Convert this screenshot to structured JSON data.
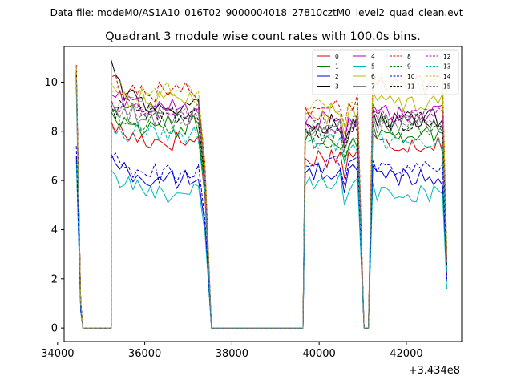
{
  "chart_data": {
    "type": "line",
    "suptitle": "Data file: modeM0/AS1A10_016T02_9000004018_27810cztM0_level2_quad_clean.evt",
    "title": "Quadrant 3 module wise count rates with 100.0s bins.",
    "xlabel": "",
    "ylabel": "",
    "offset_label": "+3.434e8",
    "xlim": [
      34150,
      43270
    ],
    "ylim": [
      -0.55,
      11.45
    ],
    "grid": false,
    "legend_position": "top-right",
    "xticks": [
      34000,
      36000,
      38000,
      40000,
      42000
    ],
    "xtick_labels": [
      "34000",
      "36000",
      "38000",
      "40000",
      "42000"
    ],
    "yticks": [
      0,
      2,
      4,
      6,
      8,
      10
    ],
    "ytick_labels": [
      "0",
      "2",
      "4",
      "6",
      "8",
      "10"
    ],
    "segments": [
      {
        "start": 34430,
        "end": 34530
      },
      {
        "start": 34530,
        "end": 35230
      },
      {
        "start": 35230,
        "end": 37430
      },
      {
        "start": 37430,
        "end": 37530
      },
      {
        "start": 37530,
        "end": 39630
      },
      {
        "start": 39630,
        "end": 40930
      },
      {
        "start": 40930,
        "end": 41030
      },
      {
        "start": 41030,
        "end": 41130
      },
      {
        "start": 41130,
        "end": 41230
      },
      {
        "start": 41230,
        "end": 42930
      }
    ],
    "series": [
      {
        "name": "0",
        "color": "#dd0000",
        "dash": "solid",
        "first": 9.8,
        "peak": 8.4,
        "level": 7.6,
        "w1": 6.9,
        "w2": 7.1,
        "p2": 7.9,
        "last": 2.2
      },
      {
        "name": "1",
        "color": "#008000",
        "dash": "solid",
        "first": 10.1,
        "peak": 8.8,
        "level": 8.2,
        "w1": 7.6,
        "w2": 7.7,
        "p2": 8.3,
        "last": 2.6
      },
      {
        "name": "2",
        "color": "#0000dd",
        "dash": "solid",
        "first": 7.0,
        "peak": 7.1,
        "level": 6.0,
        "w1": 6.3,
        "w2": 6.4,
        "p2": 6.6,
        "last": 1.9
      },
      {
        "name": "3",
        "color": "#000000",
        "dash": "solid",
        "first": 10.4,
        "peak": 10.9,
        "level": 8.9,
        "w1": 8.3,
        "w2": 8.4,
        "p2": 8.9,
        "last": 2.5
      },
      {
        "name": "4",
        "color": "#bb00bb",
        "dash": "solid",
        "first": 10.6,
        "peak": 9.5,
        "level": 9.0,
        "w1": 8.4,
        "w2": 8.5,
        "p2": 9.1,
        "last": 2.7
      },
      {
        "name": "5",
        "color": "#00bbbb",
        "dash": "solid",
        "first": 6.8,
        "peak": 6.4,
        "level": 5.5,
        "w1": 5.8,
        "w2": 5.9,
        "p2": 5.9,
        "last": 1.6
      },
      {
        "name": "6",
        "color": "#bbbb00",
        "dash": "solid",
        "first": 10.3,
        "peak": 9.6,
        "level": 9.3,
        "w1": 8.7,
        "w2": 8.7,
        "p2": 9.6,
        "last": 2.8
      },
      {
        "name": "7",
        "color": "#808080",
        "dash": "solid",
        "first": 10.0,
        "peak": 8.8,
        "level": 8.6,
        "w1": 8.0,
        "w2": 8.1,
        "p2": 8.7,
        "last": 2.4
      },
      {
        "name": "8",
        "color": "#dd0000",
        "dash": "dashed",
        "first": 10.7,
        "peak": 10.2,
        "level": 9.6,
        "w1": 9.0,
        "w2": 9.1,
        "p2": 10.3,
        "last": 3.1
      },
      {
        "name": "9",
        "color": "#008000",
        "dash": "dashed",
        "first": 10.2,
        "peak": 8.7,
        "level": 8.3,
        "w1": 7.7,
        "w2": 7.8,
        "p2": 8.5,
        "last": 2.6
      },
      {
        "name": "10",
        "color": "#0000dd",
        "dash": "dashed",
        "first": 7.4,
        "peak": 6.9,
        "level": 6.3,
        "w1": 6.6,
        "w2": 6.7,
        "p2": 6.8,
        "last": 2.0
      },
      {
        "name": "11",
        "color": "#000000",
        "dash": "dashed",
        "first": 10.3,
        "peak": 9.1,
        "level": 8.6,
        "w1": 8.1,
        "w2": 8.2,
        "p2": 8.8,
        "last": 2.6
      },
      {
        "name": "12",
        "color": "#bb00bb",
        "dash": "dashed",
        "first": 10.4,
        "peak": 9.3,
        "level": 8.8,
        "w1": 8.3,
        "w2": 8.4,
        "p2": 9.0,
        "last": 2.7
      },
      {
        "name": "13",
        "color": "#00bbbb",
        "dash": "dashed",
        "first": 9.6,
        "peak": 8.3,
        "level": 7.9,
        "w1": 7.5,
        "w2": 7.6,
        "p2": 7.9,
        "last": 2.3
      },
      {
        "name": "14",
        "color": "#bbbb00",
        "dash": "dashed",
        "first": 10.6,
        "peak": 10.0,
        "level": 9.6,
        "w1": 9.0,
        "w2": 9.1,
        "p2": 10.4,
        "last": 3.0
      },
      {
        "name": "15",
        "color": "#808080",
        "dash": "dashed",
        "first": 10.1,
        "peak": 9.2,
        "level": 8.7,
        "w1": 8.2,
        "w2": 8.3,
        "p2": 8.9,
        "last": 2.7
      }
    ]
  }
}
